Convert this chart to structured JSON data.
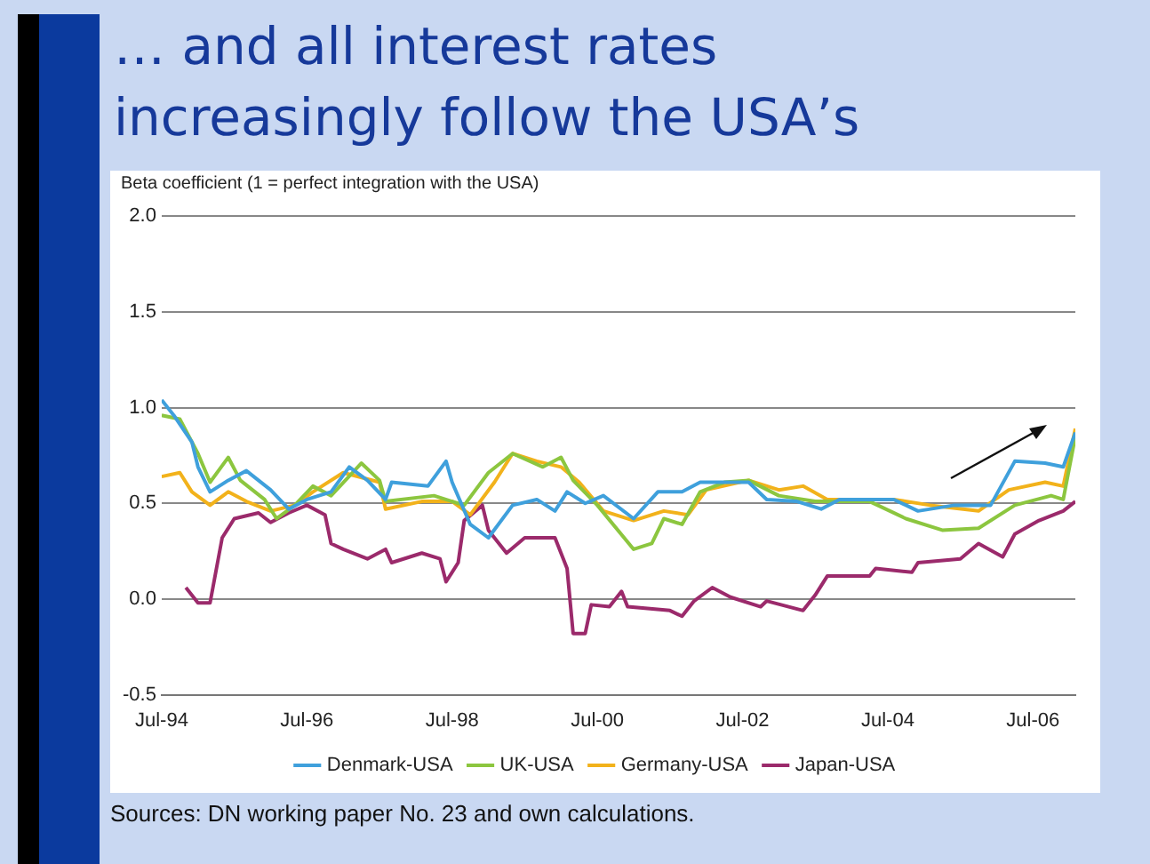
{
  "chart_data": {
    "type": "line",
    "title": "… and all interest rates increasingly follow the USA’s",
    "subtitle": "Beta coefficient (1 = perfect integration with the USA)",
    "annotations": [
      "Sources: DN working paper No. 23 and own calculations."
    ],
    "xlim": [
      "1994-07",
      "2007-02"
    ],
    "ylim": [
      -0.5,
      2.0
    ],
    "yticks": [
      {
        "value": -0.5,
        "label": "-0.5"
      },
      {
        "value": 0,
        "label": "0.0"
      },
      {
        "value": 0.5,
        "label": "0.5"
      },
      {
        "value": 1,
        "label": "1.0"
      },
      {
        "value": 1.5,
        "label": "1.5"
      },
      {
        "value": 2,
        "label": "2.0"
      }
    ],
    "xticks": [
      {
        "value": "1994-07",
        "label": "Jul-94"
      },
      {
        "value": "1996-07",
        "label": "Jul-96"
      },
      {
        "value": "1998-07",
        "label": "Jul-98"
      },
      {
        "value": "2000-07",
        "label": "Jul-00"
      },
      {
        "value": "2002-07",
        "label": "Jul-02"
      },
      {
        "value": "2004-07",
        "label": "Jul-04"
      },
      {
        "value": "2006-07",
        "label": "Jul-06"
      }
    ],
    "grid": "y",
    "legend": "bottom",
    "marker": "none",
    "line_style": "solid",
    "series": [
      {
        "name": "Denmark-USA",
        "color": "#3fa0dc",
        "x": [
          "1994-07",
          "1994-09",
          "1994-12",
          "1995-01",
          "1995-03",
          "1995-06",
          "1995-09",
          "1996-01",
          "1996-04",
          "1996-07",
          "1996-11",
          "1997-02",
          "1997-05",
          "1997-08",
          "1997-09",
          "1998-03",
          "1998-06",
          "1998-07",
          "1998-10",
          "1999-01",
          "1999-05",
          "1999-09",
          "1999-12",
          "2000-02",
          "2000-05",
          "2000-08",
          "2001-01",
          "2001-05",
          "2001-09",
          "2001-12",
          "2002-04",
          "2002-08",
          "2002-11",
          "2003-04",
          "2003-08",
          "2003-11",
          "2004-08",
          "2004-12",
          "2005-06",
          "2005-12",
          "2006-04",
          "2006-09",
          "2006-12",
          "2007-02"
        ],
        "values": [
          1.04,
          0.96,
          0.82,
          0.69,
          0.56,
          0.62,
          0.67,
          0.57,
          0.47,
          0.52,
          0.56,
          0.69,
          0.62,
          0.52,
          0.61,
          0.59,
          0.72,
          0.61,
          0.39,
          0.32,
          0.49,
          0.52,
          0.46,
          0.56,
          0.5,
          0.54,
          0.42,
          0.56,
          0.56,
          0.61,
          0.61,
          0.61,
          0.52,
          0.51,
          0.47,
          0.52,
          0.52,
          0.46,
          0.49,
          0.49,
          0.72,
          0.71,
          0.69,
          0.87
        ]
      },
      {
        "name": "UK-USA",
        "color": "#8cc63f",
        "x": [
          "1994-07",
          "1994-10",
          "1995-01",
          "1995-03",
          "1995-06",
          "1995-08",
          "1995-12",
          "1996-02",
          "1996-05",
          "1996-08",
          "1996-11",
          "1997-04",
          "1997-07",
          "1997-08",
          "1998-04",
          "1998-09",
          "1999-01",
          "1999-05",
          "1999-10",
          "2000-01",
          "2000-03",
          "2000-07",
          "2001-01",
          "2001-04",
          "2001-06",
          "2001-09",
          "2001-12",
          "2002-04",
          "2002-08",
          "2003-01",
          "2003-07",
          "2004-04",
          "2004-10",
          "2005-04",
          "2005-10",
          "2006-04",
          "2006-10",
          "2006-12",
          "2007-02"
        ],
        "values": [
          0.96,
          0.94,
          0.76,
          0.61,
          0.74,
          0.62,
          0.52,
          0.42,
          0.49,
          0.59,
          0.54,
          0.71,
          0.62,
          0.51,
          0.54,
          0.49,
          0.66,
          0.76,
          0.69,
          0.74,
          0.62,
          0.49,
          0.26,
          0.29,
          0.42,
          0.39,
          0.56,
          0.61,
          0.62,
          0.54,
          0.51,
          0.51,
          0.42,
          0.36,
          0.37,
          0.49,
          0.54,
          0.52,
          0.85
        ]
      },
      {
        "name": "Germany-USA",
        "color": "#f2b21b",
        "x": [
          "1994-07",
          "1994-10",
          "1994-12",
          "1995-03",
          "1995-06",
          "1995-09",
          "1996-01",
          "1996-05",
          "1996-08",
          "1997-01",
          "1997-07",
          "1997-08",
          "1998-02",
          "1998-07",
          "1998-10",
          "1999-02",
          "1999-05",
          "1999-09",
          "2000-01",
          "2000-04",
          "2000-08",
          "2001-01",
          "2001-06",
          "2001-10",
          "2002-01",
          "2002-08",
          "2003-01",
          "2003-05",
          "2003-09",
          "2004-08",
          "2005-02",
          "2005-10",
          "2006-03",
          "2006-09",
          "2006-12",
          "2007-02"
        ],
        "values": [
          0.64,
          0.66,
          0.56,
          0.49,
          0.56,
          0.51,
          0.46,
          0.49,
          0.56,
          0.66,
          0.61,
          0.47,
          0.51,
          0.51,
          0.44,
          0.61,
          0.76,
          0.72,
          0.69,
          0.61,
          0.46,
          0.41,
          0.46,
          0.44,
          0.57,
          0.62,
          0.57,
          0.59,
          0.52,
          0.52,
          0.49,
          0.46,
          0.57,
          0.61,
          0.59,
          0.89
        ]
      },
      {
        "name": "Japan-USA",
        "color": "#9b2a6b",
        "x": [
          "1994-11",
          "1995-01",
          "1995-03",
          "1995-05",
          "1995-07",
          "1995-11",
          "1996-01",
          "1996-04",
          "1996-07",
          "1996-10",
          "1996-11",
          "1997-01",
          "1997-05",
          "1997-08",
          "1997-09",
          "1998-02",
          "1998-05",
          "1998-06",
          "1998-08",
          "1998-09",
          "1998-12",
          "1999-01",
          "1999-04",
          "1999-07",
          "1999-12",
          "2000-02",
          "2000-03",
          "2000-05",
          "2000-06",
          "2000-09",
          "2000-11",
          "2000-12",
          "2001-07",
          "2001-09",
          "2001-11",
          "2002-02",
          "2002-05",
          "2002-10",
          "2002-11",
          "2003-05",
          "2003-07",
          "2003-09",
          "2004-04",
          "2004-05",
          "2004-11",
          "2004-12",
          "2005-07",
          "2005-10",
          "2006-02",
          "2006-04",
          "2006-08",
          "2006-12",
          "2007-02"
        ],
        "values": [
          0.06,
          -0.02,
          -0.02,
          0.32,
          0.42,
          0.45,
          0.4,
          0.45,
          0.49,
          0.44,
          0.29,
          0.26,
          0.21,
          0.26,
          0.19,
          0.24,
          0.21,
          0.09,
          0.19,
          0.41,
          0.49,
          0.36,
          0.24,
          0.32,
          0.32,
          0.16,
          -0.18,
          -0.18,
          -0.03,
          -0.04,
          0.04,
          -0.04,
          -0.06,
          -0.09,
          -0.01,
          0.06,
          0.01,
          -0.04,
          -0.01,
          -0.06,
          0.02,
          0.12,
          0.12,
          0.16,
          0.14,
          0.19,
          0.21,
          0.29,
          0.22,
          0.34,
          0.41,
          0.46,
          0.51
        ]
      }
    ]
  }
}
